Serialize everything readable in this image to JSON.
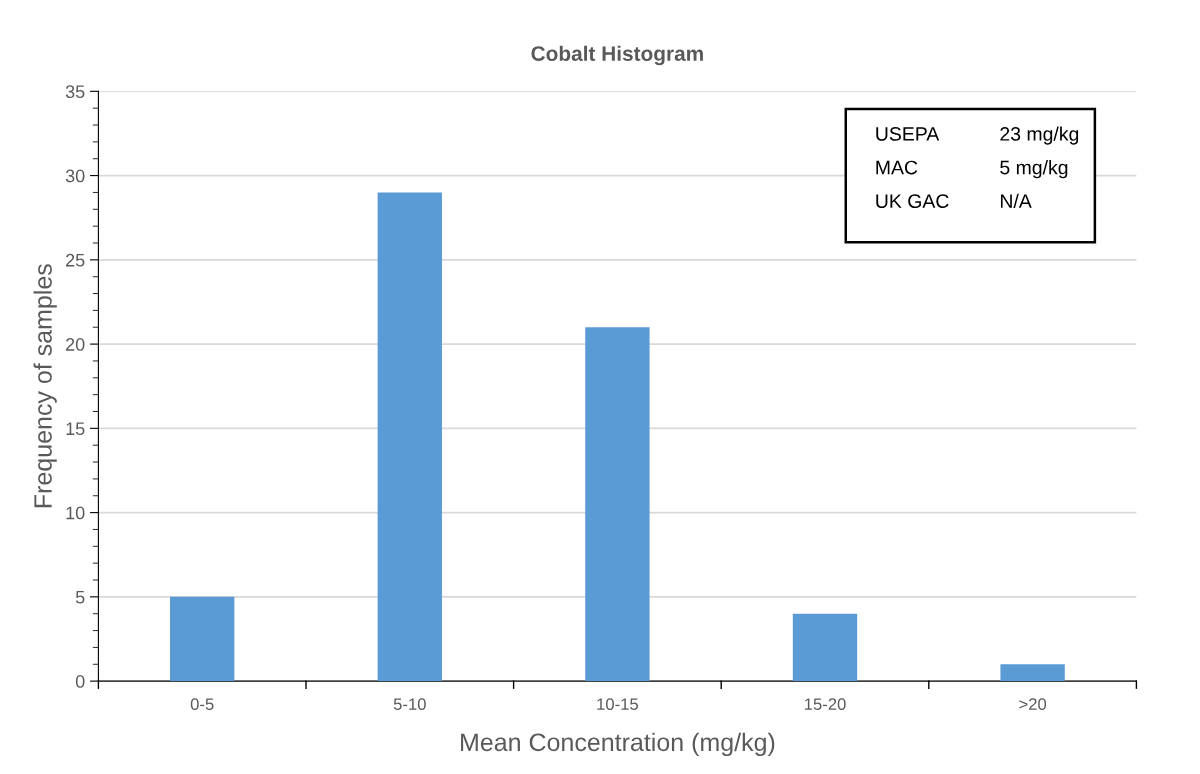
{
  "chart_data": {
    "type": "bar",
    "title": "Cobalt Histogram",
    "xlabel": "Mean Concentration (mg/kg)",
    "ylabel": "Frequency of samples",
    "categories": [
      "0-5",
      "5-10",
      "10-15",
      "15-20",
      ">20"
    ],
    "values": [
      5,
      29,
      21,
      4,
      1
    ],
    "color": "#5b9bd5",
    "ylim": [
      0,
      35
    ],
    "yticks": [
      0,
      5,
      10,
      15,
      20,
      25,
      30,
      35
    ],
    "grid": "y",
    "annotations": [
      "USEPA",
      "23 mg/kg",
      "MAC",
      "5 mg/kg",
      "UK GAC",
      "N/A"
    ]
  }
}
